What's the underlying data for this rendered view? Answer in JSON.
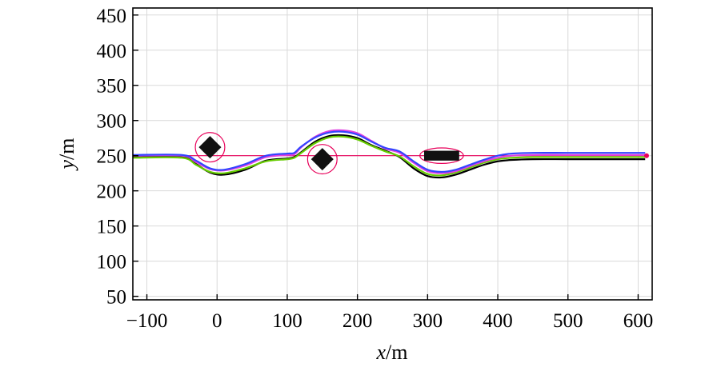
{
  "chart_data": {
    "type": "line",
    "title": "",
    "xlabel_var": "x",
    "xlabel_unit": "/m",
    "ylabel_var": "y",
    "ylabel_unit": "/m",
    "xlim": [
      -120,
      620
    ],
    "ylim": [
      45,
      460
    ],
    "xticks": [
      -100,
      0,
      100,
      200,
      300,
      400,
      500,
      600
    ],
    "xtick_labels": [
      "−100",
      "0",
      "100",
      "200",
      "300",
      "400",
      "500",
      "600"
    ],
    "yticks": [
      50,
      100,
      150,
      200,
      250,
      300,
      350,
      400,
      450
    ],
    "ytick_labels": [
      "50",
      "100",
      "150",
      "200",
      "250",
      "300",
      "350",
      "400",
      "450"
    ],
    "grid": true,
    "reference_line": {
      "y": 250,
      "x": [
        -120,
        615
      ],
      "color": "#e8005a"
    },
    "series": [
      {
        "color": "#000000",
        "x": [
          -120,
          -50,
          -30,
          -10,
          10,
          40,
          70,
          100,
          110,
          120,
          140,
          160,
          180,
          200,
          220,
          240,
          260,
          280,
          300,
          320,
          340,
          360,
          380,
          400,
          420,
          450,
          500,
          550,
          610
        ],
        "y": [
          248,
          248,
          238,
          226,
          223,
          230,
          243,
          246,
          248,
          255,
          270,
          278,
          279,
          275,
          265,
          257,
          248,
          232,
          221,
          219,
          223,
          230,
          237,
          242,
          244,
          245,
          245,
          245,
          245
        ]
      },
      {
        "color": "#66cc00",
        "x": [
          -120,
          -50,
          -30,
          -10,
          10,
          40,
          70,
          100,
          110,
          120,
          140,
          160,
          180,
          200,
          220,
          240,
          260,
          280,
          300,
          320,
          340,
          360,
          380,
          400,
          420,
          450,
          500,
          550,
          610
        ],
        "y": [
          247,
          247,
          237,
          227,
          225,
          232,
          242,
          245,
          247,
          254,
          268,
          276,
          277,
          273,
          264,
          256,
          249,
          235,
          224,
          222,
          226,
          233,
          240,
          245,
          247,
          248,
          248,
          248,
          248
        ]
      },
      {
        "color": "#e040e0",
        "x": [
          -120,
          -50,
          -30,
          -10,
          10,
          40,
          70,
          100,
          110,
          120,
          140,
          160,
          180,
          200,
          220,
          240,
          260,
          280,
          300,
          320,
          340,
          360,
          380,
          400,
          420,
          450,
          500,
          550,
          610
        ],
        "y": [
          250,
          250,
          241,
          231,
          229,
          236,
          248,
          251,
          252,
          262,
          277,
          285,
          286,
          282,
          271,
          260,
          254,
          240,
          228,
          225,
          228,
          235,
          242,
          247,
          250,
          251,
          251,
          251,
          251
        ]
      },
      {
        "color": "#3344ff",
        "x": [
          -120,
          -50,
          -30,
          -10,
          10,
          40,
          70,
          100,
          110,
          120,
          140,
          160,
          180,
          200,
          220,
          240,
          260,
          280,
          300,
          320,
          340,
          360,
          380,
          400,
          420,
          450,
          500,
          550,
          610
        ],
        "y": [
          251,
          251,
          243,
          232,
          230,
          238,
          250,
          253,
          254,
          263,
          276,
          283,
          284,
          280,
          270,
          261,
          256,
          242,
          230,
          227,
          230,
          237,
          244,
          250,
          253,
          254,
          254,
          254,
          254
        ]
      }
    ],
    "obstacles": [
      {
        "shape": "diamond",
        "x": -10,
        "y": 262,
        "size": 16,
        "safety_radius": 21
      },
      {
        "shape": "diamond",
        "x": 150,
        "y": 245,
        "size": 16,
        "safety_radius": 21
      },
      {
        "shape": "rect",
        "x": 320,
        "y": 250,
        "w": 50,
        "h": 14,
        "safety_rx": 31,
        "safety_ry": 11
      }
    ],
    "end_marker": {
      "x": 612,
      "y": 250,
      "color": "#e8005a"
    }
  }
}
